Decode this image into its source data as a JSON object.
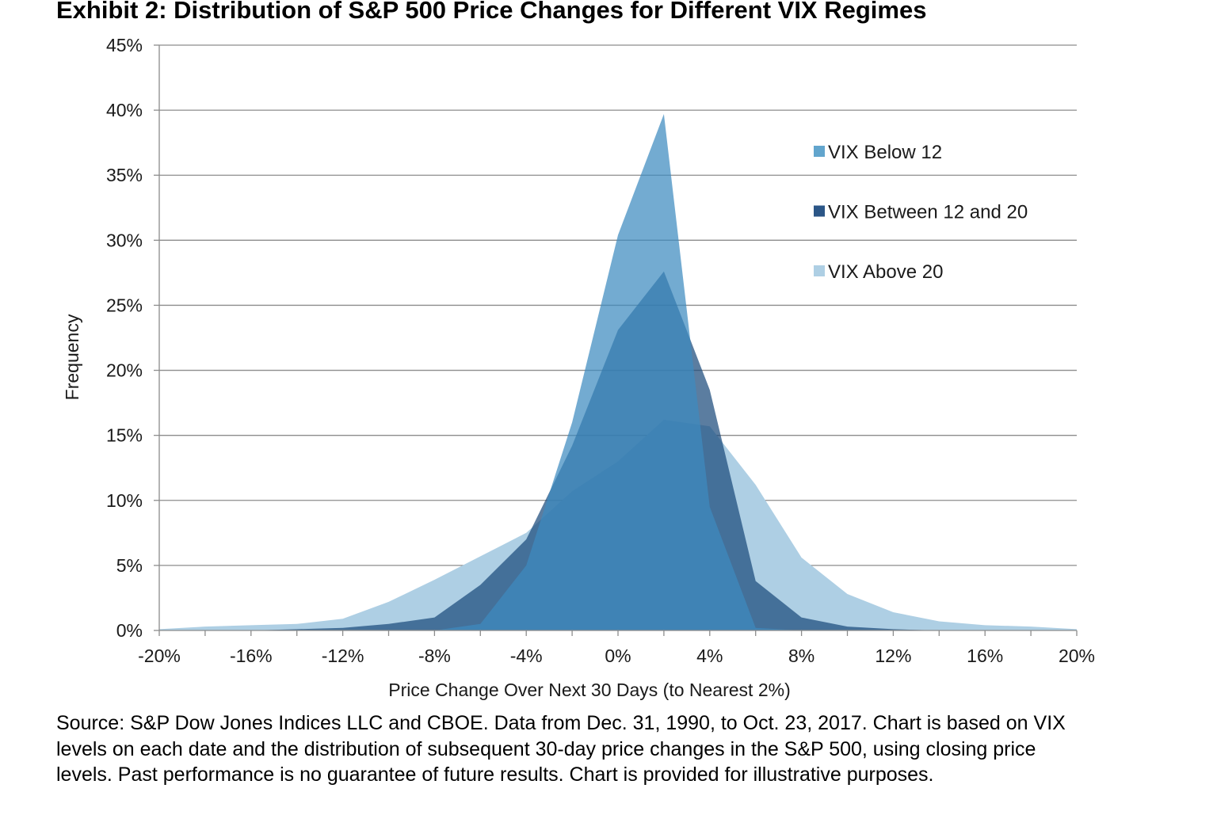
{
  "chart_data": {
    "type": "area",
    "title": "Exhibit 2: Distribution of S&P 500 Price Changes for Different VIX Regimes",
    "xlabel": "Price Change Over Next 30 Days (to Nearest 2%)",
    "ylabel": "Frequency",
    "xlim": [
      -20,
      20
    ],
    "ylim": [
      0,
      45
    ],
    "x": [
      -20,
      -18,
      -16,
      -14,
      -12,
      -10,
      -8,
      -6,
      -4,
      -2,
      0,
      2,
      4,
      6,
      8,
      10,
      12,
      14,
      16,
      18,
      20
    ],
    "x_ticks": [
      -20,
      -16,
      -12,
      -8,
      -4,
      0,
      4,
      8,
      12,
      16,
      20
    ],
    "x_tick_labels": [
      "-20%",
      "-16%",
      "-12%",
      "-8%",
      "-4%",
      "0%",
      "4%",
      "8%",
      "12%",
      "16%",
      "20%"
    ],
    "y_ticks": [
      0,
      5,
      10,
      15,
      20,
      25,
      30,
      35,
      40,
      45
    ],
    "y_tick_labels": [
      "0%",
      "5%",
      "10%",
      "15%",
      "20%",
      "25%",
      "30%",
      "35%",
      "40%",
      "45%"
    ],
    "grid": true,
    "legend_position": "top-right",
    "series": [
      {
        "name": "VIX Above 20",
        "color": "#aecfe4",
        "opacity": 1.0,
        "values": [
          0.1,
          0.3,
          0.4,
          0.5,
          0.9,
          2.2,
          3.9,
          5.7,
          7.5,
          10.7,
          13.0,
          16.2,
          15.7,
          11.2,
          5.6,
          2.8,
          1.4,
          0.7,
          0.4,
          0.3,
          0.1
        ]
      },
      {
        "name": "VIX Between 12 and 20",
        "color": "#1c4b7c",
        "opacity": 0.72,
        "values": [
          0.0,
          0.0,
          0.0,
          0.1,
          0.2,
          0.5,
          1.0,
          3.5,
          7.0,
          14.2,
          23.1,
          27.6,
          18.5,
          3.8,
          1.0,
          0.3,
          0.1,
          0.0,
          0.0,
          0.0,
          0.0
        ]
      },
      {
        "name": "VIX Below 12",
        "color": "#3d8bbf",
        "opacity": 0.72,
        "values": [
          0.0,
          0.0,
          0.0,
          0.0,
          0.0,
          0.0,
          0.0,
          0.5,
          5.0,
          16.0,
          30.4,
          39.7,
          9.5,
          0.2,
          0.0,
          0.0,
          0.0,
          0.0,
          0.0,
          0.0,
          0.0
        ]
      }
    ],
    "legend": [
      {
        "label": "VIX Below 12",
        "color": "#62a5cd"
      },
      {
        "label": "VIX Between 12 and 20",
        "color": "#2b5687"
      },
      {
        "label": "VIX Above 20",
        "color": "#aecfe4"
      }
    ]
  },
  "source_note": "Source: S&P Dow Jones Indices LLC and CBOE.  Data from Dec. 31, 1990, to Oct. 23, 2017.  Chart is based on VIX levels on each date and the distribution of subsequent 30-day price changes in the S&P 500, using closing price levels.  Past performance is no guarantee of future results.  Chart is provided for illustrative purposes."
}
